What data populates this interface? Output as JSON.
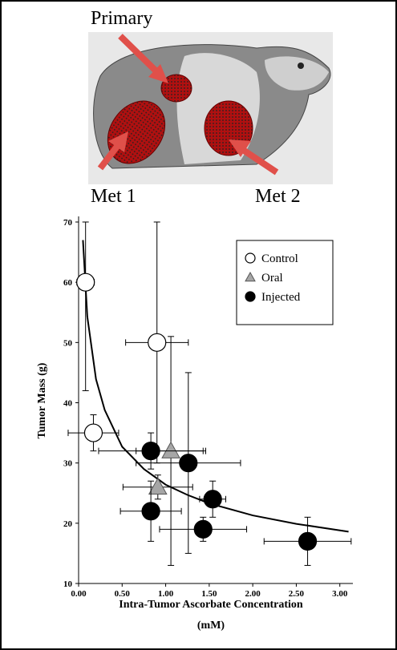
{
  "chart_data": {
    "type": "scatter",
    "top_labels": [
      "Primary",
      "Met 1",
      "Met 2"
    ],
    "xlabel": [
      "Intra-Tumor Ascorbate Concentration",
      "(mM)"
    ],
    "ylabel": "Tumor Mass (g)",
    "xlim": [
      0,
      3.15
    ],
    "ylim": [
      10,
      70
    ],
    "xticks": [
      {
        "value": 0,
        "label": "0.00"
      },
      {
        "value": 0.5,
        "label": "0.50"
      },
      {
        "value": 1,
        "label": "1.00"
      },
      {
        "value": 1.5,
        "label": "1.50"
      },
      {
        "value": 2,
        "label": "2.00"
      },
      {
        "value": 2.5,
        "label": "2.50"
      },
      {
        "value": 3,
        "label": "3.00"
      }
    ],
    "yticks": [
      10,
      20,
      30,
      40,
      50,
      60,
      70
    ],
    "series": [
      {
        "name": "Control",
        "color": "#ffffff",
        "marker": "circle",
        "x": [
          0.08,
          0.9,
          0.17
        ],
        "values": [
          60,
          50,
          35
        ],
        "xerr": [
          0.1,
          0.36,
          0.29
        ],
        "yerr": [
          18,
          20,
          3
        ]
      },
      {
        "name": "Oral",
        "color": "#a6a6a6",
        "marker": "triangle",
        "x": [
          1.06,
          0.91
        ],
        "values": [
          32,
          26
        ],
        "xerr": [
          0.4,
          0.4
        ],
        "yerr": [
          19,
          2
        ]
      },
      {
        "name": "Injected",
        "color": "#000000",
        "marker": "circle",
        "x": [
          0.83,
          0.83,
          1.26,
          1.54,
          1.43,
          2.63
        ],
        "values": [
          32,
          22,
          30,
          24,
          19,
          17
        ],
        "xerr": [
          0.6,
          0.35,
          0.6,
          0.15,
          0.5,
          0.5
        ],
        "yerr": [
          3,
          5,
          15,
          3,
          2,
          4
        ]
      }
    ],
    "fit": {
      "color": "#000000",
      "x": [
        0.05,
        0.1,
        0.2,
        0.3,
        0.5,
        0.75,
        1,
        1.25,
        1.5,
        2,
        2.5,
        3.1
      ],
      "values": [
        67,
        54.3,
        43.9,
        38.8,
        32.7,
        29,
        26.4,
        24.7,
        23.3,
        21.3,
        19.9,
        18.6
      ]
    }
  }
}
